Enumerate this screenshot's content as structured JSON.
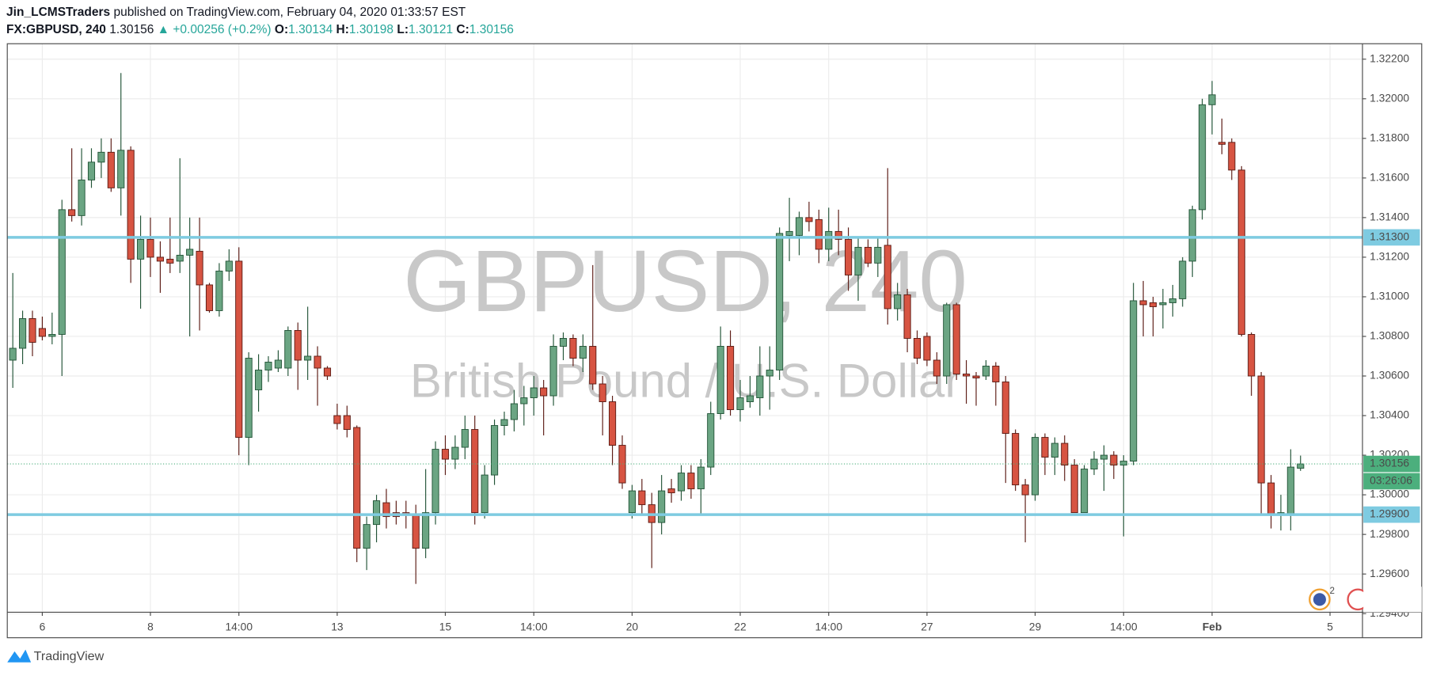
{
  "header": {
    "author": "Jin_LCMSTraders",
    "published": "published on TradingView.com, February 04, 2020 01:33:57 EST",
    "symbol": "FX:GBPUSD, 240",
    "last": "1.30156",
    "change": "▲ +0.00256 (+0.2%)",
    "open_label": "O:",
    "open": "1.30134",
    "high_label": "H:",
    "high": "1.30198",
    "low_label": "L:",
    "low": "1.30121",
    "close_label": "C:",
    "close": "1.30156"
  },
  "chart_data": {
    "type": "candlestick",
    "title": "GBPUSD, 240",
    "subtitle": "British Pound / U.S. Dollar",
    "up_color": "#6ba583",
    "up_border": "#225437",
    "down_color": "#d75442",
    "down_border": "#5b1a13",
    "open": [
      1.3068,
      1.3074,
      1.3089,
      1.3084,
      1.308,
      1.3081,
      1.3144,
      1.3141,
      1.3159,
      1.3168,
      1.3173,
      1.3155,
      1.3174,
      1.3119,
      1.3129,
      1.312,
      1.3119,
      1.3118,
      1.3121,
      1.3123,
      1.3106,
      1.3093,
      1.3113,
      1.3118,
      1.3029,
      1.3053,
      1.3063,
      1.3064,
      1.3064,
      1.3083,
      1.3068,
      1.307,
      1.3064,
      1.304,
      1.304,
      1.3034,
      1.2973,
      1.2985,
      1.2996,
      1.2991,
      1.2991,
      1.299,
      1.2973,
      1.2991,
      1.3023,
      1.3018,
      1.3024,
      1.3033,
      1.2991,
      1.301,
      1.3035,
      1.3038,
      1.3046,
      1.3049,
      1.3054,
      1.305,
      1.3075,
      1.3079,
      1.3069,
      1.3075,
      1.3056,
      1.3047,
      1.3025,
      1.2991,
      1.3002,
      1.2995,
      1.2986,
      1.3003,
      1.3002,
      1.3011,
      1.3003,
      1.3014,
      1.3041,
      1.3075,
      1.3043,
      1.3047,
      1.3049,
      1.306,
      1.3063,
      1.3131,
      1.3131,
      1.314,
      1.3139,
      1.3124,
      1.3133,
      1.3129,
      1.3111,
      1.3125,
      1.3117,
      1.3126,
      1.3094,
      1.3101,
      1.3079,
      1.308,
      1.3068,
      1.306,
      1.3096,
      1.3061,
      1.306,
      1.306,
      1.3065,
      1.3057,
      1.3031,
      1.3005,
      1.3,
      1.3029,
      1.3019,
      1.3026,
      1.3015,
      1.2991,
      1.3013,
      1.3018,
      1.302,
      1.3015,
      1.3017,
      1.3098,
      1.3097,
      1.3096,
      1.3097,
      1.3099,
      1.3118,
      1.3144,
      1.3197,
      1.3178,
      1.3178,
      1.3164,
      1.3081,
      1.306,
      1.3006,
      1.299,
      1.299,
      1.30134
    ],
    "high": [
      1.3112,
      1.3093,
      1.3093,
      1.309,
      1.3092,
      1.3149,
      1.3175,
      1.3175,
      1.3175,
      1.318,
      1.318,
      1.3213,
      1.3176,
      1.3141,
      1.314,
      1.3128,
      1.314,
      1.317,
      1.314,
      1.314,
      1.3107,
      1.3117,
      1.3124,
      1.3125,
      1.3072,
      1.3071,
      1.307,
      1.3073,
      1.3085,
      1.3087,
      1.3095,
      1.3075,
      1.3065,
      1.3046,
      1.3045,
      1.3035,
      1.2989,
      1.3,
      1.3003,
      1.2997,
      1.2997,
      1.2995,
      1.3013,
      1.3027,
      1.303,
      1.303,
      1.304,
      1.304,
      1.3015,
      1.3038,
      1.3042,
      1.3053,
      1.3055,
      1.306,
      1.3058,
      1.3081,
      1.3082,
      1.3081,
      1.3081,
      1.3116,
      1.306,
      1.305,
      1.303,
      1.3005,
      1.3008,
      1.3001,
      1.301,
      1.3008,
      1.3015,
      1.3015,
      1.3018,
      1.3047,
      1.3085,
      1.3083,
      1.3058,
      1.306,
      1.3075,
      1.3075,
      1.3135,
      1.315,
      1.3143,
      1.3148,
      1.3144,
      1.3145,
      1.3144,
      1.3135,
      1.313,
      1.3129,
      1.313,
      1.3165,
      1.3107,
      1.3104,
      1.3083,
      1.3082,
      1.3072,
      1.3097,
      1.3097,
      1.3068,
      1.3062,
      1.3068,
      1.3067,
      1.306,
      1.3033,
      1.3008,
      1.3031,
      1.3031,
      1.3029,
      1.303,
      1.3018,
      1.3015,
      1.3022,
      1.3025,
      1.3022,
      1.302,
      1.3107,
      1.3108,
      1.31,
      1.3104,
      1.3106,
      1.312,
      1.3146,
      1.32,
      1.3209,
      1.319,
      1.318,
      1.3166,
      1.3082,
      1.3062,
      1.301,
      1.3,
      1.3023,
      1.30198
    ],
    "low": [
      1.3054,
      1.3066,
      1.307,
      1.3078,
      1.3076,
      1.306,
      1.3138,
      1.3136,
      1.3155,
      1.316,
      1.3153,
      1.3141,
      1.3107,
      1.3094,
      1.311,
      1.3102,
      1.3112,
      1.3112,
      1.308,
      1.3083,
      1.3092,
      1.309,
      1.3108,
      1.302,
      1.3015,
      1.3042,
      1.3057,
      1.3062,
      1.306,
      1.3053,
      1.3058,
      1.3045,
      1.3058,
      1.3033,
      1.3029,
      1.2966,
      1.2962,
      1.2976,
      1.2983,
      1.2985,
      1.2983,
      1.2955,
      1.2968,
      1.2985,
      1.301,
      1.3013,
      1.3018,
      1.2985,
      1.2988,
      1.3005,
      1.303,
      1.3032,
      1.3035,
      1.304,
      1.303,
      1.3045,
      1.3068,
      1.3065,
      1.3062,
      1.3053,
      1.303,
      1.3015,
      1.3003,
      1.2988,
      1.299,
      1.2963,
      1.298,
      1.2996,
      1.2997,
      1.2998,
      1.299,
      1.301,
      1.3038,
      1.304,
      1.3037,
      1.3044,
      1.304,
      1.3043,
      1.3058,
      1.3118,
      1.3121,
      1.3133,
      1.3117,
      1.3118,
      1.3121,
      1.3103,
      1.3098,
      1.3115,
      1.311,
      1.3086,
      1.3088,
      1.3072,
      1.3066,
      1.3065,
      1.3056,
      1.3056,
      1.3058,
      1.3046,
      1.3045,
      1.3058,
      1.3045,
      1.3006,
      1.3002,
      1.2976,
      1.2997,
      1.301,
      1.301,
      1.3007,
      1.2991,
      1.2991,
      1.301,
      1.3002,
      1.3008,
      1.2979,
      1.3015,
      1.308,
      1.308,
      1.3084,
      1.309,
      1.3095,
      1.311,
      1.3139,
      1.3182,
      1.3172,
      1.3159,
      1.308,
      1.305,
      1.299,
      1.2983,
      1.2982,
      1.2982,
      1.30121
    ],
    "close": [
      1.3074,
      1.3089,
      1.3077,
      1.308,
      1.3081,
      1.3144,
      1.3141,
      1.3159,
      1.3168,
      1.3173,
      1.3155,
      1.3174,
      1.3119,
      1.3129,
      1.312,
      1.3118,
      1.3117,
      1.3121,
      1.3124,
      1.3106,
      1.3093,
      1.3113,
      1.3118,
      1.3029,
      1.3069,
      1.3063,
      1.3067,
      1.3068,
      1.3083,
      1.3068,
      1.307,
      1.3064,
      1.306,
      1.3036,
      1.3033,
      1.2973,
      1.2985,
      1.2997,
      1.2989,
      1.2989,
      1.299,
      1.2973,
      1.2991,
      1.3023,
      1.3018,
      1.3024,
      1.3033,
      1.2991,
      1.301,
      1.3035,
      1.3038,
      1.3046,
      1.3049,
      1.3054,
      1.305,
      1.3075,
      1.3079,
      1.3069,
      1.3075,
      1.3056,
      1.3047,
      1.3025,
      1.3006,
      1.3002,
      1.2995,
      1.2986,
      1.3002,
      1.3001,
      1.3011,
      1.3003,
      1.3014,
      1.3041,
      1.3075,
      1.3043,
      1.3049,
      1.305,
      1.306,
      1.3063,
      1.3132,
      1.3133,
      1.314,
      1.3138,
      1.3124,
      1.3133,
      1.3129,
      1.3111,
      1.3125,
      1.3117,
      1.3125,
      1.3094,
      1.3101,
      1.3079,
      1.3069,
      1.3068,
      1.306,
      1.3096,
      1.3061,
      1.306,
      1.3059,
      1.3065,
      1.3057,
      1.3031,
      1.3005,
      1.3,
      1.3029,
      1.3019,
      1.3026,
      1.3015,
      1.2991,
      1.3013,
      1.3018,
      1.302,
      1.3015,
      1.3017,
      1.3098,
      1.3096,
      1.3095,
      1.3097,
      1.3099,
      1.3118,
      1.3144,
      1.3197,
      1.3202,
      1.3177,
      1.3164,
      1.3081,
      1.306,
      1.3006,
      1.299,
      1.2991,
      1.3014,
      1.30156
    ],
    "xlim": [
      -0.56,
      137.3
    ],
    "xticks": [
      {
        "value": 3,
        "label": "6"
      },
      {
        "value": 14,
        "label": "8"
      },
      {
        "value": 23,
        "label": "14:00"
      },
      {
        "value": 33,
        "label": "13"
      },
      {
        "value": 44,
        "label": "15"
      },
      {
        "value": 53,
        "label": "14:00"
      },
      {
        "value": 63,
        "label": "20"
      },
      {
        "value": 74,
        "label": "22"
      },
      {
        "value": 83,
        "label": "14:00"
      },
      {
        "value": 93,
        "label": "27"
      },
      {
        "value": 104,
        "label": "29"
      },
      {
        "value": 113,
        "label": "14:00"
      },
      {
        "value": 122,
        "label": "Feb"
      },
      {
        "value": 134,
        "label": "5"
      }
    ],
    "ylim": [
      1.29407,
      1.32278
    ],
    "yticks": [
      {
        "value": 1.294,
        "label": "1.29400"
      },
      {
        "value": 1.296,
        "label": "1.29600"
      },
      {
        "value": 1.298,
        "label": "1.29800"
      },
      {
        "value": 1.3,
        "label": "1.30000"
      },
      {
        "value": 1.302,
        "label": "1.30200"
      },
      {
        "value": 1.304,
        "label": "1.30400"
      },
      {
        "value": 1.306,
        "label": "1.30600"
      },
      {
        "value": 1.308,
        "label": "1.30800"
      },
      {
        "value": 1.31,
        "label": "1.31000"
      },
      {
        "value": 1.312,
        "label": "1.31200"
      },
      {
        "value": 1.314,
        "label": "1.31400"
      },
      {
        "value": 1.316,
        "label": "1.31600"
      },
      {
        "value": 1.318,
        "label": "1.31800"
      },
      {
        "value": 1.32,
        "label": "1.32000"
      },
      {
        "value": 1.322,
        "label": "1.32200"
      }
    ],
    "grid": true,
    "levels": [
      {
        "value": 1.313,
        "label": "1.31300",
        "color": "#7ecbe1"
      },
      {
        "value": 1.299,
        "label": "1.29900",
        "color": "#7ecbe1"
      }
    ],
    "last_price": {
      "value": 1.30156,
      "label": "1.30156",
      "color": "#4caf7d"
    },
    "countdown": "03:26:06",
    "events_badge": "2"
  },
  "footer": {
    "brand": "TradingView"
  }
}
